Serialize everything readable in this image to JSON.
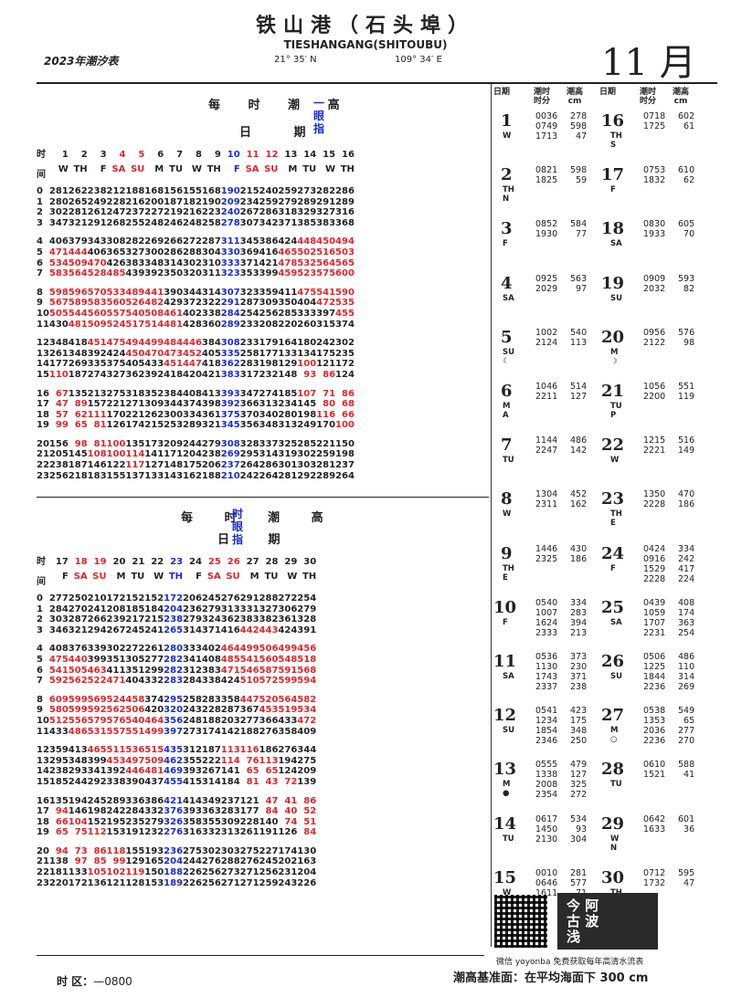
{
  "header": {
    "title_cn": "铁山港（石头埠）",
    "title_en": "TIESHANGANG(SHITOUBU)",
    "year_label": "2023年潮汐表",
    "latitude": "21° 35′ N",
    "longitude": "109° 34′ E",
    "month": "11 月"
  },
  "section1": {
    "title": "每 时 潮 高",
    "subtitle": "日 期",
    "marker": "一眼指",
    "row_label_top": "时",
    "row_label_bottom": "间",
    "days": [
      "1",
      "2",
      "3",
      "4",
      "5",
      "6",
      "7",
      "8",
      "9",
      "10",
      "11",
      "12",
      "13",
      "14",
      "15",
      "16"
    ],
    "weekdays": [
      "W",
      "TH",
      "F",
      "SA",
      "SU",
      "M",
      "TU",
      "W",
      "TH",
      "F",
      "SA",
      "SU",
      "M",
      "TU",
      "W",
      "TH"
    ],
    "day_colors": [
      "",
      "",
      "",
      "red",
      "red",
      "",
      "",
      "",
      "",
      "blue",
      "red",
      "red",
      "",
      "",
      "",
      ""
    ],
    "hours": [
      "0",
      "1",
      "2",
      "3",
      "4",
      "5",
      "6",
      "7",
      "8",
      "9",
      "10",
      "11",
      "12",
      "13",
      "14",
      "15",
      "16",
      "17",
      "18",
      "19",
      "20",
      "21",
      "22",
      "23"
    ],
    "rows": [
      [
        "281",
        "262",
        "238",
        "212",
        "188",
        "168",
        "156",
        "155",
        "168",
        "190",
        "215",
        "240",
        "259",
        "273",
        "282",
        "286"
      ],
      [
        "280",
        "265",
        "249",
        "228",
        "216",
        "200",
        "187",
        "182",
        "190",
        "209",
        "234",
        "259",
        "279",
        "289",
        "291",
        "289"
      ],
      [
        "302",
        "281",
        "261",
        "247",
        "237",
        "227",
        "219",
        "216",
        "223",
        "240",
        "267",
        "286",
        "318",
        "329",
        "327",
        "316"
      ],
      [
        "347",
        "321",
        "291",
        "268",
        "255",
        "248",
        "246",
        "248",
        "258",
        "278",
        "307",
        "342",
        "371",
        "385",
        "383",
        "368"
      ],
      [
        "406",
        "379",
        "343",
        "308",
        "282",
        "269",
        "266",
        "272",
        "287",
        "311",
        "345",
        "386",
        "424",
        "448",
        "450",
        "494"
      ],
      [
        "471",
        "444",
        "406",
        "365",
        "327",
        "300",
        "286",
        "288",
        "304",
        "330",
        "369",
        "416",
        "465",
        "502",
        "516",
        "503"
      ],
      [
        "534",
        "509",
        "470",
        "426",
        "383",
        "348",
        "314",
        "302",
        "310",
        "333",
        "371",
        "421",
        "478",
        "532",
        "564",
        "565"
      ],
      [
        "583",
        "564",
        "528",
        "485",
        "439",
        "392",
        "350",
        "320",
        "311",
        "323",
        "353",
        "399",
        "459",
        "523",
        "575",
        "600"
      ],
      [
        "598",
        "596",
        "570",
        "533",
        "489",
        "441",
        "390",
        "344",
        "314",
        "307",
        "323",
        "359",
        "411",
        "475",
        "541",
        "590"
      ],
      [
        "567",
        "589",
        "583",
        "560",
        "526",
        "482",
        "429",
        "372",
        "322",
        "291",
        "287",
        "309",
        "350",
        "404",
        "472",
        "535"
      ],
      [
        "505",
        "544",
        "560",
        "557",
        "540",
        "508",
        "461",
        "402",
        "338",
        "284",
        "254",
        "256",
        "285",
        "333",
        "397",
        "455"
      ],
      [
        "430",
        "481",
        "509",
        "524",
        "517",
        "514",
        "481",
        "428",
        "360",
        "289",
        "233",
        "208",
        "220",
        "260",
        "315",
        "374"
      ],
      [
        "348",
        "418",
        "451",
        "475",
        "494",
        "499",
        "484",
        "446",
        "384",
        "308",
        "233",
        "179",
        "164",
        "180",
        "242",
        "302"
      ],
      [
        "261",
        "348",
        "392",
        "424",
        "450",
        "470",
        "473",
        "452",
        "405",
        "335",
        "258",
        "177",
        "133",
        "134",
        "175",
        "235"
      ],
      [
        "177",
        "269",
        "335",
        "375",
        "405",
        "433",
        "451",
        "447",
        "418",
        "362",
        "283",
        "198",
        "129",
        "100",
        "121",
        "172"
      ],
      [
        "110",
        "187",
        "274",
        "327",
        "362",
        "392",
        "418",
        "420",
        "421",
        "383",
        "317",
        "232",
        "148",
        "93",
        "86",
        "124"
      ],
      [
        "67",
        "135",
        "213",
        "275",
        "318",
        "352",
        "384",
        "408",
        "413",
        "393",
        "347",
        "274",
        "185",
        "107",
        "71",
        "86"
      ],
      [
        "47",
        "89",
        "157",
        "221",
        "271",
        "309",
        "344",
        "374",
        "398",
        "392",
        "366",
        "313",
        "234",
        "145",
        "80",
        "68"
      ],
      [
        "57",
        "62",
        "111",
        "170",
        "221",
        "262",
        "300",
        "334",
        "361",
        "375",
        "370",
        "340",
        "280",
        "198",
        "116",
        "66"
      ],
      [
        "99",
        "65",
        "81",
        "126",
        "174",
        "215",
        "253",
        "289",
        "321",
        "345",
        "356",
        "348",
        "313",
        "249",
        "170",
        "100"
      ],
      [
        "156",
        "98",
        "81",
        "100",
        "135",
        "173",
        "209",
        "244",
        "279",
        "308",
        "328",
        "337",
        "325",
        "285",
        "221",
        "150"
      ],
      [
        "205",
        "145",
        "108",
        "100",
        "114",
        "141",
        "171",
        "204",
        "238",
        "269",
        "295",
        "314",
        "319",
        "302",
        "259",
        "198"
      ],
      [
        "238",
        "187",
        "146",
        "122",
        "117",
        "127",
        "148",
        "175",
        "206",
        "237",
        "264",
        "286",
        "301",
        "303",
        "281",
        "237"
      ],
      [
        "256",
        "218",
        "183",
        "155",
        "137",
        "133",
        "143",
        "162",
        "188",
        "210",
        "242",
        "264",
        "281",
        "292",
        "289",
        "264"
      ]
    ]
  },
  "section2": {
    "title": "每 时 潮 高",
    "subtitle": "日 期",
    "marker": "时眼指",
    "row_label_top": "时",
    "row_label_bottom": "间",
    "days": [
      "17",
      "18",
      "19",
      "20",
      "21",
      "22",
      "23",
      "24",
      "25",
      "26",
      "27",
      "28",
      "29",
      "30"
    ],
    "weekdays": [
      "F",
      "SA",
      "SU",
      "M",
      "TU",
      "W",
      "TH",
      "F",
      "SA",
      "SU",
      "M",
      "TU",
      "W",
      "TH"
    ],
    "day_colors": [
      "",
      "red",
      "red",
      "",
      "",
      "",
      "blue",
      "",
      "red",
      "red",
      "",
      "",
      "",
      ""
    ],
    "hours": [
      "0",
      "1",
      "2",
      "3",
      "4",
      "5",
      "6",
      "7",
      "8",
      "9",
      "10",
      "11",
      "12",
      "13",
      "14",
      "15",
      "16",
      "17",
      "18",
      "19",
      "20",
      "21",
      "22",
      "23"
    ],
    "rows": [
      [
        "277",
        "250",
        "210",
        "172",
        "152",
        "152",
        "172",
        "206",
        "245",
        "276",
        "291",
        "288",
        "272",
        "254"
      ],
      [
        "284",
        "270",
        "241",
        "208",
        "185",
        "184",
        "204",
        "236",
        "279",
        "313",
        "331",
        "327",
        "306",
        "279"
      ],
      [
        "303",
        "287",
        "266",
        "239",
        "217",
        "215",
        "238",
        "279",
        "324",
        "362",
        "383",
        "382",
        "361",
        "328"
      ],
      [
        "346",
        "321",
        "294",
        "267",
        "245",
        "241",
        "265",
        "314",
        "371",
        "416",
        "442",
        "443",
        "424",
        "391"
      ],
      [
        "408",
        "376",
        "339",
        "302",
        "272",
        "261",
        "280",
        "333",
        "402",
        "464",
        "499",
        "506",
        "499",
        "456"
      ],
      [
        "475",
        "440",
        "399",
        "351",
        "305",
        "277",
        "282",
        "341",
        "408",
        "485",
        "541",
        "560",
        "548",
        "518"
      ],
      [
        "541",
        "505",
        "463",
        "411",
        "351",
        "299",
        "282",
        "312",
        "383",
        "471",
        "546",
        "587",
        "591",
        "568"
      ],
      [
        "592",
        "562",
        "522",
        "471",
        "404",
        "332",
        "283",
        "284",
        "338",
        "424",
        "510",
        "572",
        "599",
        "594"
      ],
      [
        "609",
        "599",
        "569",
        "524",
        "458",
        "374",
        "295",
        "258",
        "283",
        "358",
        "447",
        "520",
        "564",
        "582"
      ],
      [
        "580",
        "599",
        "592",
        "562",
        "506",
        "420",
        "320",
        "243",
        "228",
        "287",
        "367",
        "453",
        "519",
        "534"
      ],
      [
        "512",
        "556",
        "579",
        "576",
        "540",
        "464",
        "356",
        "248",
        "188",
        "203",
        "277",
        "366",
        "433",
        "472"
      ],
      [
        "433",
        "486",
        "531",
        "557",
        "551",
        "499",
        "397",
        "273",
        "174",
        "142",
        "188",
        "276",
        "358",
        "409"
      ],
      [
        "359",
        "413",
        "465",
        "511",
        "536",
        "515",
        "435",
        "312",
        "187",
        "113",
        "116",
        "186",
        "276",
        "344"
      ],
      [
        "295",
        "348",
        "399",
        "453",
        "497",
        "509",
        "462",
        "355",
        "222",
        "114",
        "76",
        "113",
        "194",
        "275"
      ],
      [
        "238",
        "293",
        "341",
        "392",
        "446",
        "481",
        "469",
        "393",
        "267",
        "141",
        "65",
        "65",
        "124",
        "209"
      ],
      [
        "185",
        "244",
        "292",
        "338",
        "390",
        "437",
        "455",
        "415",
        "314",
        "184",
        "81",
        "43",
        "72",
        "139"
      ],
      [
        "135",
        "194",
        "245",
        "289",
        "336",
        "386",
        "421",
        "414",
        "349",
        "237",
        "121",
        "47",
        "41",
        "86"
      ],
      [
        "94",
        "146",
        "198",
        "242",
        "284",
        "332",
        "376",
        "393",
        "363",
        "283",
        "177",
        "84",
        "40",
        "52"
      ],
      [
        "66",
        "104",
        "152",
        "195",
        "235",
        "279",
        "326",
        "358",
        "355",
        "309",
        "228",
        "140",
        "74",
        "51"
      ],
      [
        "65",
        "75",
        "112",
        "153",
        "191",
        "232",
        "276",
        "316",
        "332",
        "313",
        "261",
        "191",
        "126",
        "84"
      ],
      [
        "94",
        "73",
        "86",
        "118",
        "155",
        "193",
        "236",
        "275",
        "302",
        "303",
        "275",
        "227",
        "174",
        "130"
      ],
      [
        "138",
        "97",
        "85",
        "99",
        "129",
        "165",
        "204",
        "244",
        "276",
        "288",
        "276",
        "245",
        "202",
        "163"
      ],
      [
        "181",
        "133",
        "105",
        "102",
        "119",
        "150",
        "188",
        "226",
        "256",
        "273",
        "271",
        "256",
        "231",
        "204"
      ],
      [
        "220",
        "172",
        "136",
        "121",
        "128",
        "153",
        "189",
        "226",
        "256",
        "271",
        "271",
        "259",
        "243",
        "226"
      ]
    ]
  },
  "side": {
    "head": [
      "日期",
      "潮时\n时分",
      "潮高\ncm",
      "日期",
      "潮时\n时分",
      "潮高\ncm"
    ],
    "left": [
      {
        "day": "1",
        "wd": "W",
        "times": "0036\n0749\n1713",
        "heights": "278\n598\n47"
      },
      {
        "day": "2",
        "wd": "TH\nN",
        "times": "0821\n1825",
        "heights": "598\n59"
      },
      {
        "day": "3",
        "wd": "F",
        "times": "0852\n1930",
        "heights": "584\n77"
      },
      {
        "day": "4",
        "wd": "SA",
        "times": "0925\n2029",
        "heights": "563\n97"
      },
      {
        "day": "5",
        "wd": "SU\n☾",
        "times": "1002\n2124",
        "heights": "540\n113"
      },
      {
        "day": "6",
        "wd": "M\nA",
        "times": "1046\n2211",
        "heights": "514\n127"
      },
      {
        "day": "7",
        "wd": "TU",
        "times": "1144\n2247",
        "heights": "486\n142"
      },
      {
        "day": "8",
        "wd": "W",
        "times": "1304\n2311",
        "heights": "452\n162"
      },
      {
        "day": "9",
        "wd": "TH\nE",
        "times": "1446\n2325",
        "heights": "430\n186"
      },
      {
        "day": "10",
        "wd": "F",
        "times": "0540\n1007\n1624\n2333",
        "heights": "334\n283\n394\n213"
      },
      {
        "day": "11",
        "wd": "SA",
        "times": "0536\n1130\n1743\n2337",
        "heights": "373\n230\n371\n238"
      },
      {
        "day": "12",
        "wd": "SU",
        "times": "0541\n1234\n1854\n2346",
        "heights": "423\n175\n348\n250"
      },
      {
        "day": "13",
        "wd": "M\n●",
        "times": "0555\n1338\n2008\n2354",
        "heights": "479\n127\n325\n272"
      },
      {
        "day": "14",
        "wd": "TU",
        "times": "0617\n1450\n2130",
        "heights": "534\n93\n304"
      },
      {
        "day": "15",
        "wd": "W",
        "times": "0010\n0646\n1611",
        "heights": "281\n577\n71"
      }
    ],
    "right": [
      {
        "day": "16",
        "wd": "TH\nS",
        "times": "0718\n1725",
        "heights": "602\n61"
      },
      {
        "day": "17",
        "wd": "F",
        "times": "0753\n1832",
        "heights": "610\n62"
      },
      {
        "day": "18",
        "wd": "SA",
        "times": "0830\n1933",
        "heights": "605\n70"
      },
      {
        "day": "19",
        "wd": "SU",
        "times": "0909\n2032",
        "heights": "593\n82"
      },
      {
        "day": "20",
        "wd": "M\n☽",
        "times": "0956\n2122",
        "heights": "576\n98"
      },
      {
        "day": "21",
        "wd": "TU\nP",
        "times": "1056\n2200",
        "heights": "551\n119"
      },
      {
        "day": "22",
        "wd": "W",
        "times": "1215\n2221",
        "heights": "516\n149"
      },
      {
        "day": "23",
        "wd": "TH\nE",
        "times": "1350\n2228",
        "heights": "470\n186"
      },
      {
        "day": "24",
        "wd": "F",
        "times": "0424\n0916\n1529\n2228",
        "heights": "334\n242\n417\n224"
      },
      {
        "day": "25",
        "wd": "SA",
        "times": "0439\n1059\n1707\n2231",
        "heights": "408\n174\n363\n254"
      },
      {
        "day": "26",
        "wd": "SU",
        "times": "0506\n1225\n1844\n2236",
        "heights": "486\n110\n314\n269"
      },
      {
        "day": "27",
        "wd": "M\n○",
        "times": "0538\n1353\n2036\n2236",
        "heights": "549\n65\n277\n270"
      },
      {
        "day": "28",
        "wd": "TU",
        "times": "0610\n1521",
        "heights": "588\n41"
      },
      {
        "day": "29",
        "wd": "W\nN",
        "times": "0642\n1633",
        "heights": "601\n36"
      },
      {
        "day": "30",
        "wd": "TH",
        "times": "0712\n1732",
        "heights": "595\n47"
      }
    ]
  },
  "footer": {
    "qr_note": "微信 yoyonba 免费获取每年高清水流表",
    "seal_text": "今 阿\n古 波\n浅",
    "zone_label": "时  区：",
    "zone_value": "—0800",
    "datum": "潮高基准面：在平均海面下 300  cm"
  },
  "colors": {
    "red": "#e0262b",
    "blue": "#1a2bd6",
    "ink": "#222222"
  }
}
